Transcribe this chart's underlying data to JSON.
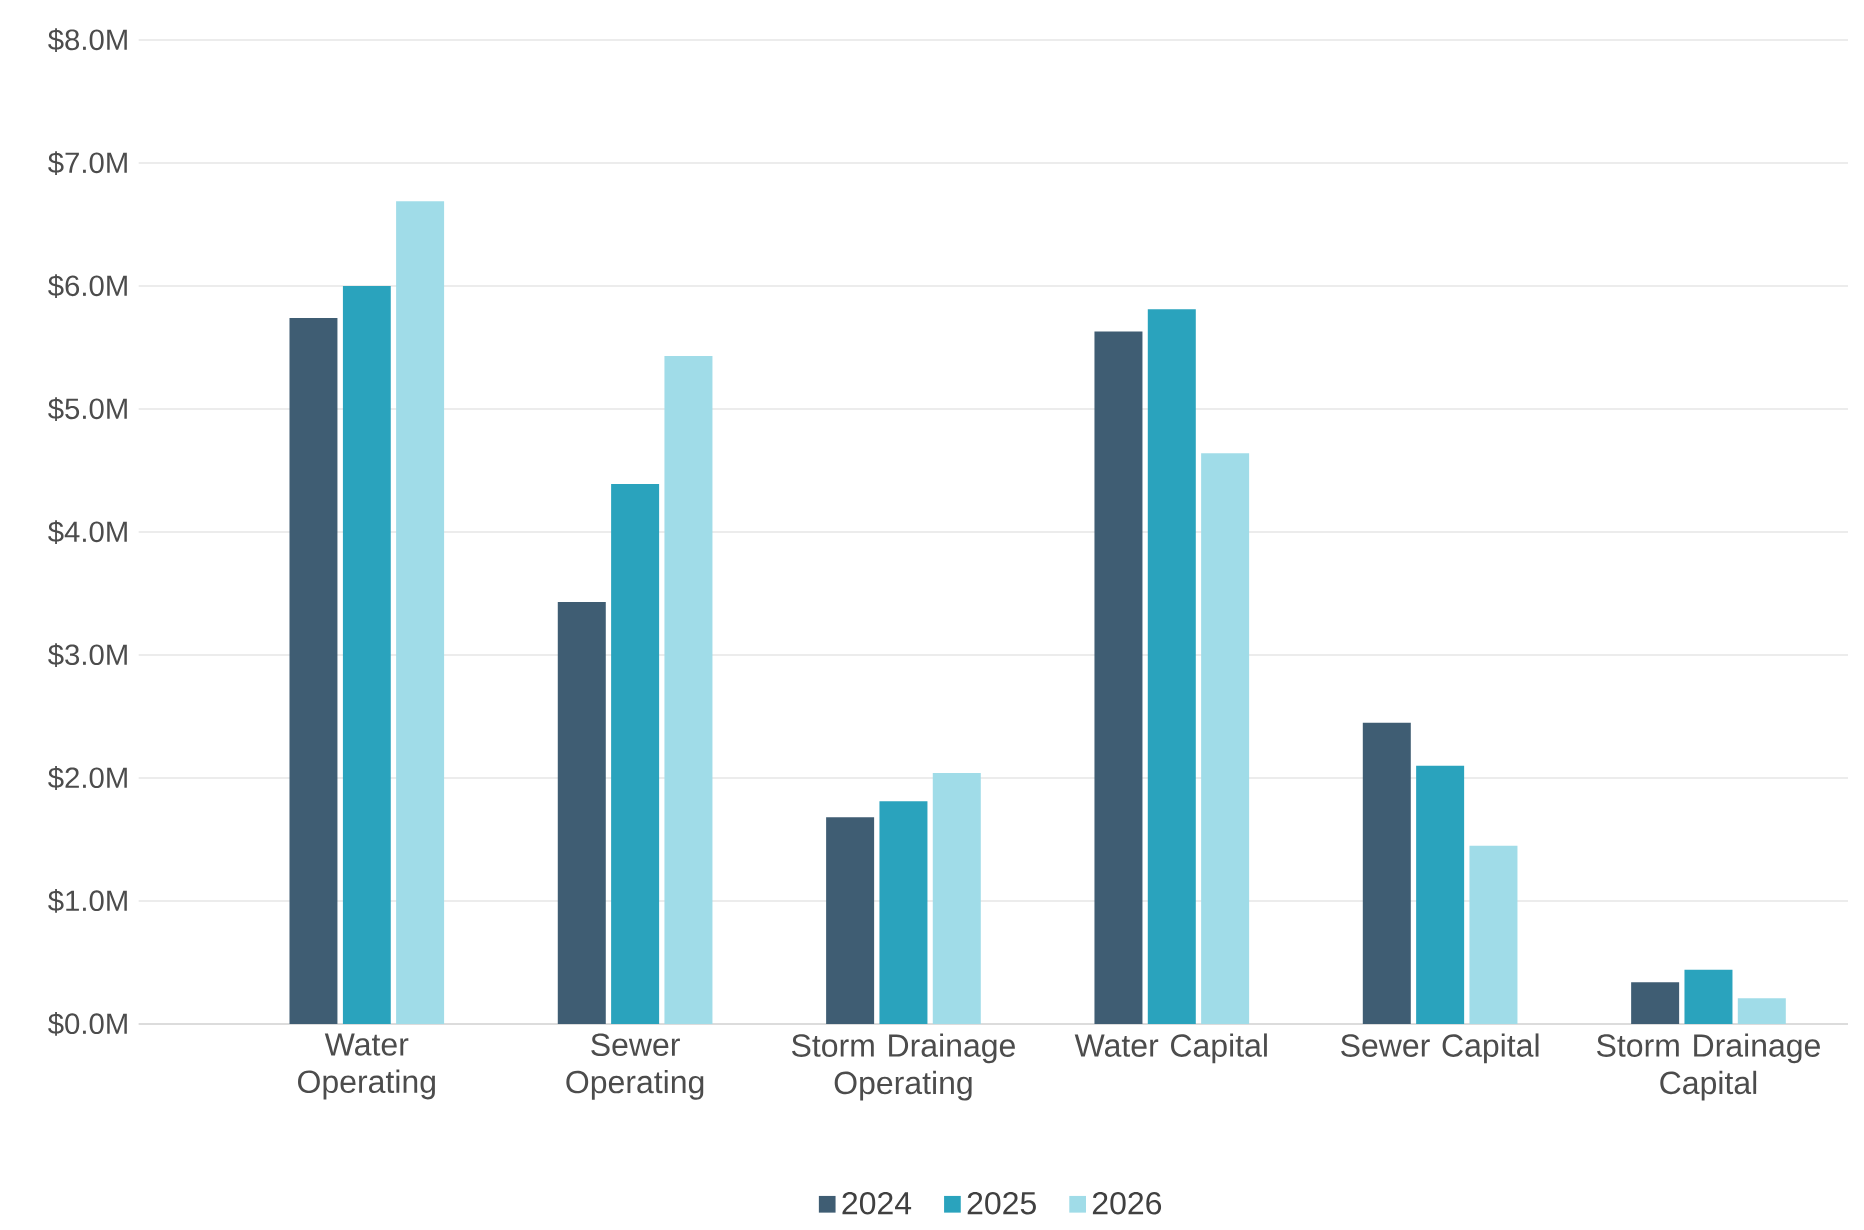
{
  "chart_data": {
    "type": "bar",
    "categories": [
      "Water Operating",
      "Sewer Operating",
      "Storm Drainage Operating",
      "Water Capital",
      "Sewer Capital",
      "Storm Drainage Capital"
    ],
    "series": [
      {
        "name": "2024",
        "color": "#3f5d73",
        "values": [
          5.74,
          3.43,
          1.68,
          5.63,
          2.45,
          0.34
        ]
      },
      {
        "name": "2025",
        "color": "#2aa3bd",
        "values": [
          6.0,
          4.39,
          1.81,
          5.81,
          2.1,
          0.44
        ]
      },
      {
        "name": "2026",
        "color": "#a0dce8",
        "values": [
          6.69,
          5.43,
          2.04,
          4.64,
          1.45,
          0.21
        ]
      }
    ],
    "ylim": [
      0,
      8
    ],
    "yticks": [
      {
        "value": 0,
        "label": "$0.0M"
      },
      {
        "value": 1,
        "label": "$1.0M"
      },
      {
        "value": 2,
        "label": "$2.0M"
      },
      {
        "value": 3,
        "label": "$3.0M"
      },
      {
        "value": 4,
        "label": "$4.0M"
      },
      {
        "value": 5,
        "label": "$5.0M"
      },
      {
        "value": 6,
        "label": "$6.0M"
      },
      {
        "value": 7,
        "label": "$7.0M"
      },
      {
        "value": 8,
        "label": "$8.0M"
      }
    ],
    "grid": "y",
    "legend": "bottom"
  }
}
